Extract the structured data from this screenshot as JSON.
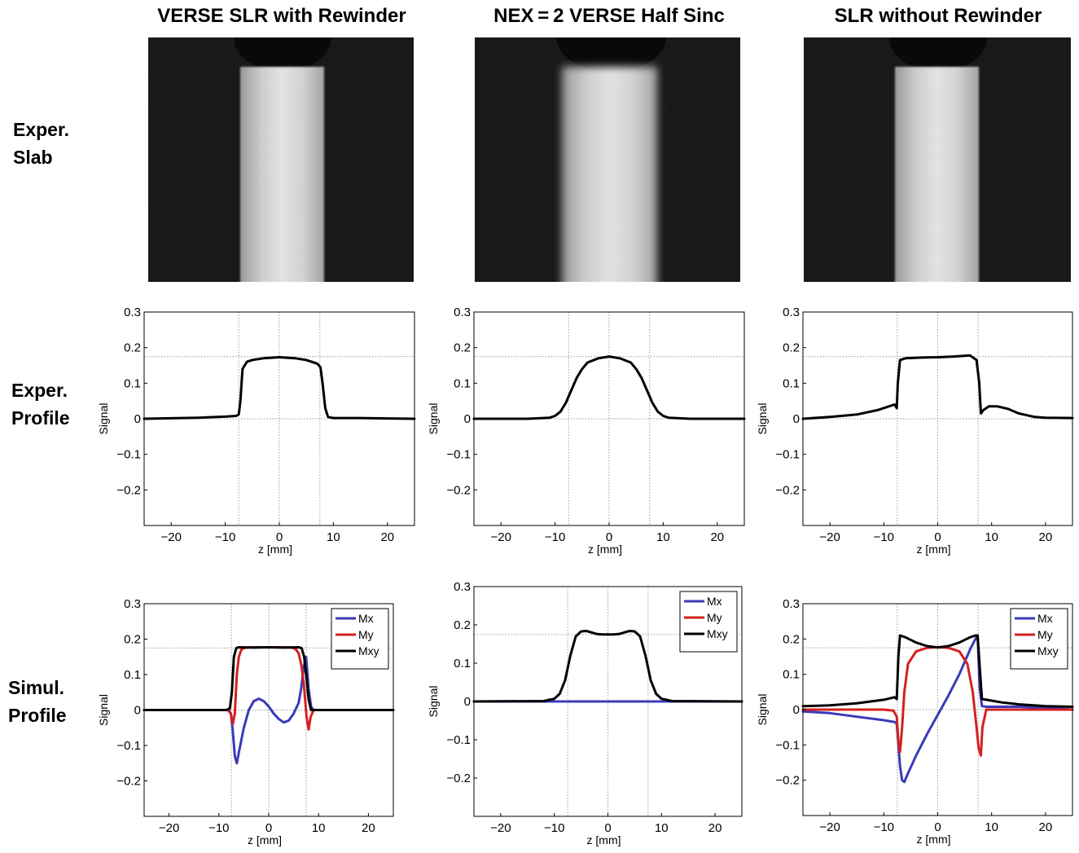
{
  "columns": [
    {
      "title": "VERSE SLR with Rewinder"
    },
    {
      "title": "NEX = 2 VERSE Half Sinc"
    },
    {
      "title": "SLR without Rewinder"
    }
  ],
  "row_labels": {
    "slab": [
      "Exper.",
      "Slab"
    ],
    "exper_profile": [
      "Exper.",
      "Profile"
    ],
    "simul_profile": [
      "Simul.",
      "Profile"
    ]
  },
  "chart_data": [
    {
      "id": "exper-profile-1",
      "type": "line",
      "xlabel": "z [mm]",
      "ylabel": "Signal",
      "xlim": [
        -25,
        25
      ],
      "ylim": [
        -0.3,
        0.3
      ],
      "xticks": [
        -20,
        -10,
        0,
        10,
        20
      ],
      "yticks": [
        0.3,
        0.2,
        0.1,
        0,
        -0.1,
        -0.2
      ],
      "xtick_labels": [
        "−20",
        "−10",
        "0",
        "10",
        "20"
      ],
      "ytick_labels": [
        "0.3",
        "0.2",
        "0.1",
        "0",
        "−0.1",
        "−0.2"
      ],
      "guides": {
        "vlines": [
          -7.5,
          0,
          7.5
        ],
        "hlines": [
          0.175,
          0
        ]
      },
      "legend": null,
      "series": [
        {
          "color": "#000000",
          "x": [
            -25,
            -15,
            -10,
            -8,
            -7.5,
            -7.2,
            -6.8,
            -6,
            -5,
            -3,
            0,
            3,
            5,
            7,
            7.6,
            8,
            8.5,
            9,
            10,
            15,
            20,
            25
          ],
          "y": [
            0,
            0.003,
            0.006,
            0.008,
            0.012,
            0.05,
            0.14,
            0.16,
            0.165,
            0.17,
            0.173,
            0.17,
            0.165,
            0.155,
            0.145,
            0.1,
            0.03,
            0.005,
            0.002,
            0.002,
            0.001,
            0
          ]
        }
      ]
    },
    {
      "id": "exper-profile-2",
      "type": "line",
      "xlabel": "z [mm]",
      "ylabel": "Signal",
      "xlim": [
        -25,
        25
      ],
      "ylim": [
        -0.3,
        0.3
      ],
      "xticks": [
        -20,
        -10,
        0,
        10,
        20
      ],
      "yticks": [
        0.3,
        0.2,
        0.1,
        0,
        -0.1,
        -0.2
      ],
      "xtick_labels": [
        "−20",
        "−10",
        "0",
        "10",
        "20"
      ],
      "ytick_labels": [
        "0.3",
        "0.2",
        "0.1",
        "0",
        "−0.1",
        "−0.2"
      ],
      "guides": {
        "vlines": [
          -7.5,
          0,
          7.5
        ],
        "hlines": [
          0.175,
          0
        ]
      },
      "legend": null,
      "series": [
        {
          "color": "#000000",
          "x": [
            -25,
            -15,
            -11,
            -10,
            -9,
            -8,
            -7,
            -6,
            -5,
            -4,
            -2,
            0,
            2,
            4,
            5,
            6,
            7,
            8,
            9,
            10,
            11,
            15,
            25
          ],
          "y": [
            0,
            0,
            0.003,
            0.008,
            0.02,
            0.045,
            0.08,
            0.115,
            0.14,
            0.158,
            0.17,
            0.175,
            0.17,
            0.158,
            0.14,
            0.115,
            0.08,
            0.045,
            0.02,
            0.008,
            0.003,
            0,
            0
          ]
        }
      ]
    },
    {
      "id": "exper-profile-3",
      "type": "line",
      "xlabel": "z [mm]",
      "ylabel": "Signal",
      "xlim": [
        -25,
        25
      ],
      "ylim": [
        -0.3,
        0.3
      ],
      "xticks": [
        -20,
        -10,
        0,
        10,
        20
      ],
      "yticks": [
        0.3,
        0.2,
        0.1,
        0,
        -0.1,
        -0.2
      ],
      "xtick_labels": [
        "−20",
        "−10",
        "0",
        "10",
        "20"
      ],
      "ytick_labels": [
        "0.3",
        "0.2",
        "0.1",
        "0",
        "−0.1",
        "−0.2"
      ],
      "guides": {
        "vlines": [
          -7.5,
          0,
          7.5
        ],
        "hlines": [
          0.175,
          0
        ]
      },
      "legend": null,
      "series": [
        {
          "color": "#000000",
          "x": [
            -25,
            -20,
            -15,
            -11,
            -9,
            -8,
            -7.6,
            -7.4,
            -7,
            -6,
            -3,
            0,
            3,
            6,
            7.2,
            7.7,
            8,
            8.5,
            9.5,
            11,
            13,
            15,
            18,
            20,
            25
          ],
          "y": [
            0,
            0.005,
            0.012,
            0.025,
            0.035,
            0.04,
            0.03,
            0.1,
            0.165,
            0.17,
            0.172,
            0.173,
            0.175,
            0.178,
            0.165,
            0.1,
            0.015,
            0.025,
            0.035,
            0.035,
            0.028,
            0.015,
            0.005,
            0.003,
            0.002
          ]
        }
      ]
    },
    {
      "id": "simul-profile-1",
      "type": "line",
      "xlabel": "z [mm]",
      "ylabel": "Signal",
      "xlim": [
        -25,
        25
      ],
      "ylim": [
        -0.3,
        0.3
      ],
      "xticks": [
        -20,
        -10,
        0,
        10,
        20
      ],
      "yticks": [
        0.3,
        0.2,
        0.1,
        0,
        -0.1,
        -0.2
      ],
      "xtick_labels": [
        "−20",
        "−10",
        "0",
        "10",
        "20"
      ],
      "ytick_labels": [
        "0.3",
        "0.2",
        "0.1",
        "0",
        "−0.1",
        "−0.2"
      ],
      "guides": {
        "vlines": [
          -7.5,
          0,
          7.5
        ],
        "hlines": [
          0.175,
          0
        ]
      },
      "legend": "top-right",
      "series": [
        {
          "name": "Mx",
          "color": "#3a3ab8",
          "x": [
            -25,
            -8,
            -7.6,
            -7.2,
            -6.8,
            -6.4,
            -6,
            -5,
            -4,
            -3,
            -2,
            -1,
            0,
            1,
            2,
            3,
            4,
            5,
            6,
            6.5,
            7,
            7.5,
            8,
            8.5,
            9,
            25
          ],
          "y": [
            0,
            0,
            -0.01,
            -0.06,
            -0.13,
            -0.15,
            -0.12,
            -0.05,
            0,
            0.025,
            0.032,
            0.025,
            0.01,
            -0.01,
            -0.025,
            -0.035,
            -0.03,
            -0.01,
            0.02,
            0.06,
            0.12,
            0.15,
            0.06,
            0.01,
            0,
            0
          ]
        },
        {
          "name": "My",
          "color": "#d42020",
          "x": [
            -25,
            -8.2,
            -7.6,
            -7.2,
            -6.8,
            -6.4,
            -6,
            -5.5,
            -5,
            -4,
            0,
            4,
            5,
            5.5,
            6,
            6.5,
            7,
            7.3,
            7.6,
            8,
            8.4,
            9,
            25
          ],
          "y": [
            0,
            0,
            -0.01,
            -0.04,
            -0.01,
            0.1,
            0.15,
            0.17,
            0.175,
            0.177,
            0.177,
            0.177,
            0.175,
            0.17,
            0.16,
            0.13,
            0.08,
            0.03,
            -0.02,
            -0.055,
            -0.02,
            0,
            0
          ]
        },
        {
          "name": "Mxy",
          "color": "#000000",
          "x": [
            -25,
            -8.5,
            -7.8,
            -7.4,
            -7,
            -6.5,
            -6,
            -3,
            0,
            3,
            6,
            6.6,
            7.1,
            7.5,
            8,
            8.5,
            25
          ],
          "y": [
            0,
            0,
            0.005,
            0.05,
            0.15,
            0.175,
            0.177,
            0.176,
            0.177,
            0.176,
            0.177,
            0.175,
            0.15,
            0.1,
            0.03,
            0,
            0
          ]
        }
      ]
    },
    {
      "id": "simul-profile-2",
      "type": "line",
      "xlabel": "z [mm]",
      "ylabel": "Signal",
      "xlim": [
        -25,
        25
      ],
      "ylim": [
        -0.3,
        0.3
      ],
      "xticks": [
        -20,
        -10,
        0,
        10,
        20
      ],
      "yticks": [
        0.3,
        0.2,
        0.1,
        0,
        -0.1,
        -0.2
      ],
      "xtick_labels": [
        "−20",
        "−10",
        "0",
        "10",
        "20"
      ],
      "ytick_labels": [
        "0.3",
        "0.2",
        "0.1",
        "0",
        "−0.1",
        "−0.2"
      ],
      "guides": {
        "vlines": [
          -7.5,
          0,
          7.5
        ],
        "hlines": [
          0.175,
          0
        ]
      },
      "legend": "top-right",
      "series": [
        {
          "name": "Mx",
          "color": "#3a3ab8",
          "x": [
            -25,
            25
          ],
          "y": [
            0,
            0
          ]
        },
        {
          "name": "My",
          "color": "#d42020",
          "x": [],
          "y": []
        },
        {
          "name": "Mxy",
          "color": "#000000",
          "x": [
            -25,
            -12,
            -10,
            -9,
            -8,
            -7,
            -6,
            -5,
            -4,
            -3,
            -2,
            -1,
            0,
            1,
            2,
            3,
            4,
            5,
            6,
            7,
            8,
            9,
            10,
            12,
            25
          ],
          "y": [
            0,
            0.001,
            0.007,
            0.02,
            0.055,
            0.12,
            0.17,
            0.183,
            0.184,
            0.18,
            0.176,
            0.175,
            0.175,
            0.175,
            0.176,
            0.18,
            0.184,
            0.183,
            0.17,
            0.12,
            0.055,
            0.02,
            0.007,
            0.001,
            0
          ]
        }
      ]
    },
    {
      "id": "simul-profile-3",
      "type": "line",
      "xlabel": "z [mm]",
      "ylabel": "Signal",
      "xlim": [
        -25,
        25
      ],
      "ylim": [
        -0.3,
        0.3
      ],
      "xticks": [
        -20,
        -10,
        0,
        10,
        20
      ],
      "yticks": [
        0.3,
        0.2,
        0.1,
        0,
        -0.1,
        -0.2
      ],
      "xtick_labels": [
        "−20",
        "−10",
        "0",
        "10",
        "20"
      ],
      "ytick_labels": [
        "0.3",
        "0.2",
        "0.1",
        "0",
        "−0.1",
        "−0.2"
      ],
      "guides": {
        "vlines": [
          -7.5,
          0,
          7.5
        ],
        "hlines": [
          0.175,
          0
        ]
      },
      "legend": "top-right",
      "series": [
        {
          "name": "Mx",
          "color": "#3a3ab8",
          "x": [
            -25,
            -20,
            -15,
            -10,
            -8,
            -7.6,
            -7.3,
            -7,
            -6.6,
            -6.2,
            -5.5,
            -4,
            -2,
            0,
            2,
            4,
            6,
            7,
            7.4,
            7.8,
            8.2,
            9,
            12,
            15,
            20,
            25
          ],
          "y": [
            -0.005,
            -0.01,
            -0.02,
            -0.03,
            -0.035,
            -0.04,
            -0.1,
            -0.16,
            -0.2,
            -0.205,
            -0.18,
            -0.13,
            -0.07,
            -0.015,
            0.04,
            0.1,
            0.17,
            0.2,
            0.21,
            0.06,
            0.01,
            0.008,
            0.008,
            0.008,
            0.005,
            0
          ]
        },
        {
          "name": "My",
          "color": "#d42020",
          "x": [
            -25,
            -15,
            -10,
            -8.2,
            -7.6,
            -7.3,
            -7,
            -6.6,
            -6.2,
            -5.5,
            -4,
            -2,
            0,
            2,
            4,
            5.5,
            6.5,
            7.2,
            7.6,
            8,
            8.3,
            9,
            12,
            25
          ],
          "y": [
            0,
            0,
            0,
            -0.003,
            -0.02,
            -0.09,
            -0.12,
            -0.05,
            0.05,
            0.13,
            0.165,
            0.175,
            0.177,
            0.175,
            0.165,
            0.13,
            0.05,
            -0.05,
            -0.11,
            -0.13,
            -0.05,
            0,
            0,
            0
          ]
        },
        {
          "name": "Mxy",
          "color": "#000000",
          "x": [
            -25,
            -20,
            -15,
            -10,
            -8,
            -7.6,
            -7.3,
            -7,
            -6,
            -4,
            -2,
            0,
            2,
            4,
            6,
            7,
            7.4,
            7.8,
            8.2,
            9,
            12,
            15,
            20,
            25
          ],
          "y": [
            0.01,
            0.012,
            0.018,
            0.028,
            0.035,
            0.03,
            0.15,
            0.21,
            0.205,
            0.19,
            0.18,
            0.176,
            0.18,
            0.19,
            0.205,
            0.21,
            0.21,
            0.12,
            0.03,
            0.028,
            0.02,
            0.015,
            0.01,
            0.008
          ]
        }
      ]
    }
  ]
}
